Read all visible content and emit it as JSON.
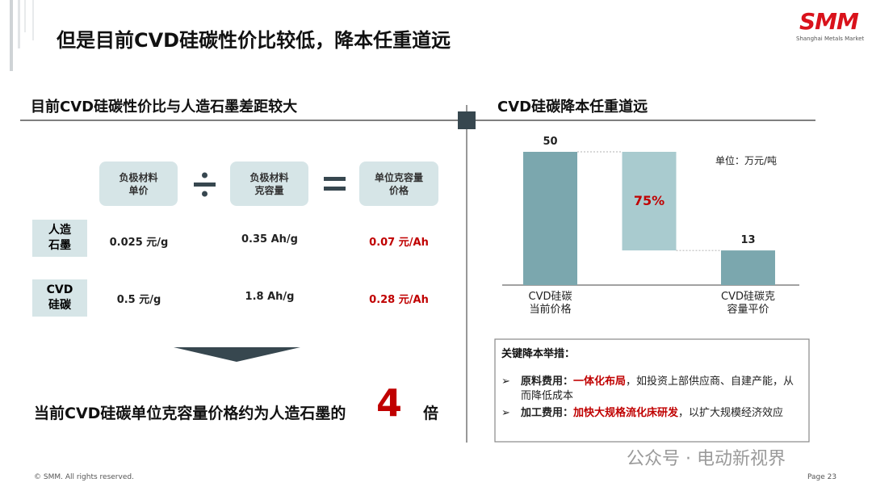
{
  "header": {
    "title": "但是目前CVD硅碳性价比较低，降本任重道远",
    "logo": "SMM",
    "logo_sub": "Shanghai Metals Market"
  },
  "left": {
    "heading": "目前CVD硅碳性价比与人造石墨差距较大",
    "columns": [
      "负极材料\n单价",
      "负极材料\n克容量",
      "单位克容量\n价格"
    ],
    "rows": [
      {
        "label": "人造\n石墨",
        "values": [
          "0.025 元/g",
          "0.35 Ah/g",
          "0.07 元/Ah"
        ]
      },
      {
        "label": "CVD\n硅碳",
        "values": [
          "0.5 元/g",
          "1.8 Ah/g",
          "0.28 元/Ah"
        ]
      }
    ],
    "conclusion": {
      "text": "当前CVD硅碳单位克容量价格约为人造石墨的",
      "number": "4",
      "suffix": "倍"
    }
  },
  "right": {
    "heading": "CVD硅碳降本任重道远",
    "measures": {
      "title": "关键降本举措：",
      "items": [
        {
          "label": "原料费用：",
          "highlight": "一体化布局",
          "text": "，如投资上部供应商、自建产能，从而降低成本"
        },
        {
          "label": "加工费用：",
          "highlight": "加快大规格流化床研发",
          "text": "，以扩大规模经济效应"
        }
      ]
    }
  },
  "chart_data": {
    "type": "waterfall",
    "categories": [
      "CVD硅碳\n当前价格",
      null,
      "CVD硅碳克\n容量平价"
    ],
    "values": [
      50,
      -37,
      13
    ],
    "unit": "单位：万元/吨",
    "annotation": "75%",
    "color": "#7ba7ae",
    "color_change": "#a9cbcf"
  },
  "footer": {
    "copyright": "© SMM. All rights reserved.",
    "page": "Page 23"
  },
  "watermark": "公众号 · 电动新视界"
}
